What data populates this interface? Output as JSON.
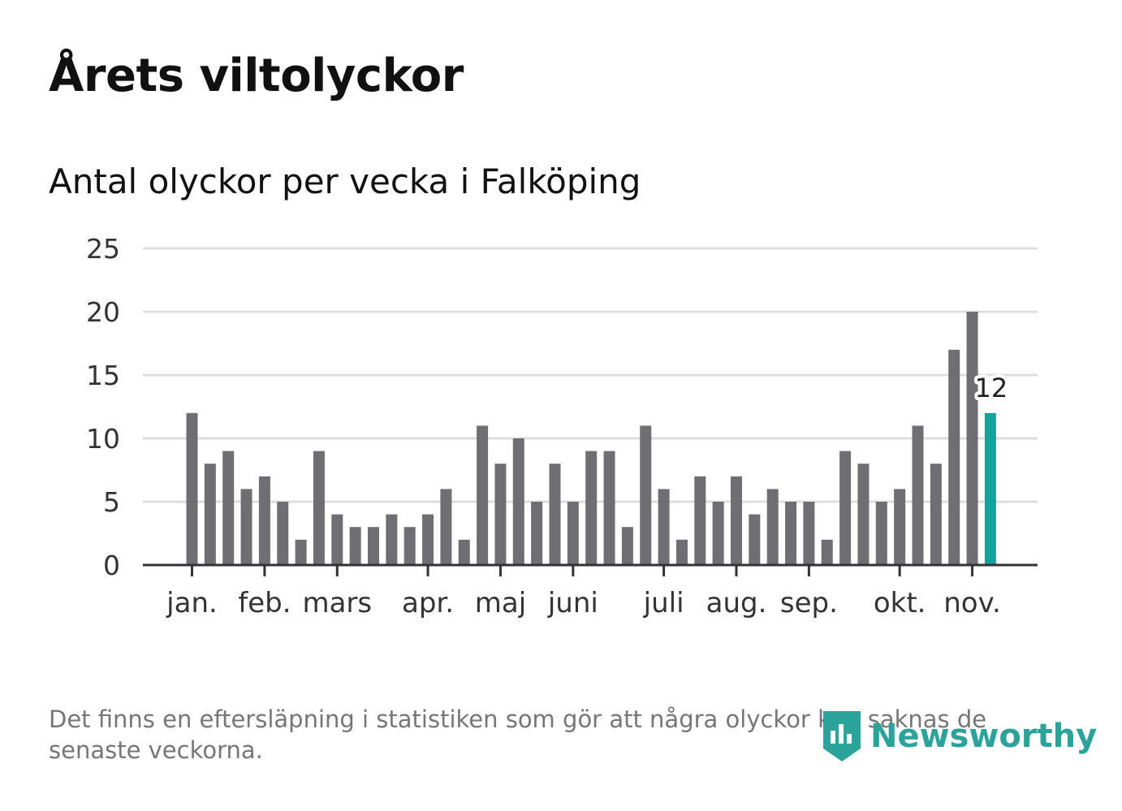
{
  "title": "Årets viltolyckor",
  "subtitle": "Antal olyckor per vecka i Falköping",
  "footnote": "Det finns en eftersläpning i statistiken som gör att några olyckor kan saknas de senaste veckorna.",
  "brand": {
    "name": "Newsworthy",
    "color": "#2ba29a"
  },
  "colors": {
    "bar": "#6f6e73",
    "highlight": "#12a39b",
    "grid": "#dddddd",
    "axis": "#333333"
  },
  "chart_data": {
    "type": "bar",
    "title": "Årets viltolyckor",
    "subtitle": "Antal olyckor per vecka i Falköping",
    "xlabel": "",
    "ylabel": "",
    "ylim": [
      0,
      25
    ],
    "yticks": [
      0,
      5,
      10,
      15,
      20,
      25
    ],
    "grid": true,
    "values": [
      12,
      8,
      9,
      6,
      7,
      5,
      2,
      9,
      4,
      3,
      3,
      4,
      3,
      4,
      6,
      2,
      11,
      8,
      10,
      5,
      8,
      5,
      9,
      9,
      3,
      11,
      6,
      2,
      7,
      5,
      7,
      4,
      6,
      5,
      5,
      2,
      9,
      8,
      5,
      6,
      11,
      8,
      17,
      20,
      12
    ],
    "highlight_index": 44,
    "highlight_label": "12",
    "months": [
      {
        "label": "jan.",
        "week": 1
      },
      {
        "label": "feb.",
        "week": 5
      },
      {
        "label": "mars",
        "week": 9
      },
      {
        "label": "apr.",
        "week": 14
      },
      {
        "label": "maj",
        "week": 18
      },
      {
        "label": "juni",
        "week": 22
      },
      {
        "label": "juli",
        "week": 27
      },
      {
        "label": "aug.",
        "week": 31
      },
      {
        "label": "sep.",
        "week": 35
      },
      {
        "label": "okt.",
        "week": 40
      },
      {
        "label": "nov.",
        "week": 44
      }
    ]
  }
}
